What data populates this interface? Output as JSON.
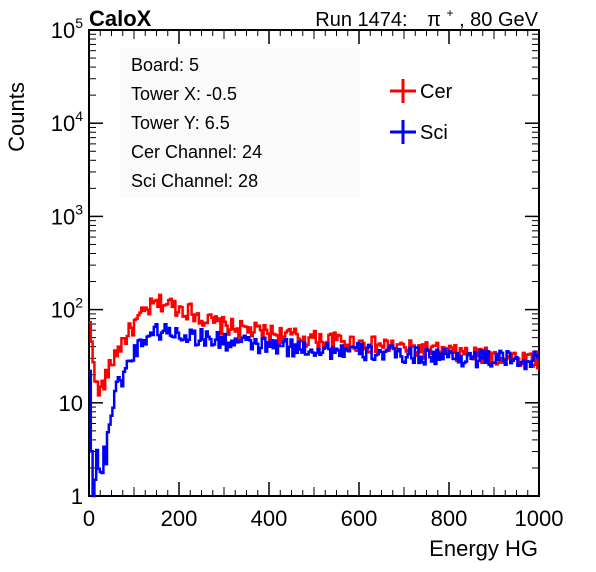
{
  "header": {
    "brand": "CaloX",
    "run_prefix": "Run 1474:",
    "particle_symbol": "π",
    "particle_charge": "+",
    "beam_energy": ", 80 GeV"
  },
  "info_box": {
    "lines": [
      "Board: 5",
      "Tower X: -0.5",
      "Tower Y: 6.5",
      "Cer Channel: 24",
      "Sci Channel: 28"
    ]
  },
  "colors": {
    "cer": "#ff0000",
    "sci": "#0000ff",
    "axis": "#000000"
  },
  "chart_data": {
    "type": "line",
    "title": "",
    "xlabel": "Energy HG",
    "ylabel": "Counts",
    "xlim": [
      0,
      1000
    ],
    "ylim": [
      1,
      100000
    ],
    "yscale": "log",
    "grid": false,
    "legend_placement": "top-right",
    "x_ticks": [
      0,
      200,
      400,
      600,
      800,
      1000
    ],
    "y_ticks": [
      {
        "base": "1",
        "exp": ""
      },
      {
        "base": "10",
        "exp": ""
      },
      {
        "base": "10",
        "exp": "2"
      },
      {
        "base": "10",
        "exp": "3"
      },
      {
        "base": "10",
        "exp": "4"
      },
      {
        "base": "10",
        "exp": "5"
      }
    ],
    "series": [
      {
        "name": "Cer",
        "color": "#ff0000",
        "x": [
          0,
          20,
          40,
          60,
          80,
          100,
          120,
          140,
          160,
          180,
          200,
          220,
          240,
          260,
          280,
          300,
          320,
          340,
          360,
          380,
          400,
          420,
          440,
          460,
          480,
          500,
          520,
          540,
          560,
          580,
          600,
          620,
          640,
          660,
          680,
          700,
          720,
          740,
          760,
          780,
          800,
          820,
          840,
          860,
          880,
          900,
          920,
          940,
          960,
          980,
          1000
        ],
        "values": [
          80,
          12,
          20,
          35,
          50,
          68,
          90,
          110,
          120,
          115,
          105,
          100,
          90,
          78,
          72,
          68,
          65,
          62,
          60,
          58,
          57,
          55,
          53,
          52,
          50,
          49,
          48,
          47,
          46,
          45,
          44,
          43,
          42,
          41,
          40,
          39,
          38,
          38,
          37,
          36,
          35,
          34,
          34,
          33,
          32,
          32,
          31,
          31,
          30,
          30,
          30
        ]
      },
      {
        "name": "Sci",
        "color": "#0000ff",
        "x": [
          0,
          10,
          20,
          30,
          40,
          50,
          60,
          80,
          100,
          120,
          140,
          160,
          180,
          200,
          220,
          240,
          260,
          280,
          300,
          320,
          340,
          360,
          380,
          400,
          420,
          440,
          460,
          480,
          500,
          520,
          540,
          560,
          580,
          600,
          620,
          640,
          660,
          680,
          700,
          720,
          740,
          760,
          780,
          800,
          820,
          840,
          860,
          880,
          900,
          920,
          940,
          960,
          980,
          1000
        ],
        "values": [
          40,
          1.5,
          3,
          1.5,
          5,
          8,
          14,
          22,
          35,
          48,
          58,
          60,
          58,
          56,
          54,
          52,
          50,
          48,
          46,
          45,
          44,
          43,
          42,
          41,
          40,
          40,
          39,
          39,
          38,
          38,
          37,
          37,
          36,
          36,
          35,
          35,
          34,
          34,
          33,
          33,
          33,
          32,
          32,
          32,
          31,
          31,
          31,
          30,
          30,
          30,
          29,
          29,
          29,
          29
        ]
      }
    ]
  }
}
